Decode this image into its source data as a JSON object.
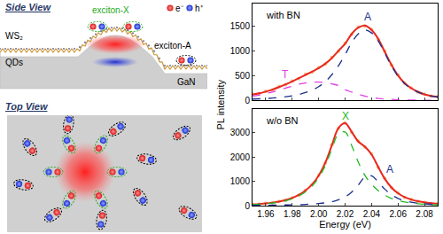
{
  "diagram": {
    "side_view": {
      "title": "Side View",
      "layer": "WS₂",
      "dots": "QDs",
      "substrate": "GaN",
      "exciton_x": "exciton-X",
      "exciton_a": "exciton-A",
      "electron": "e⁻",
      "hole": "h⁺"
    },
    "top_view": {
      "title": "Top View"
    }
  },
  "chart_data": {
    "type": "line",
    "xlabel": "Energy (eV)",
    "ylabel": "PL intensity",
    "xlim": [
      1.95,
      2.09
    ],
    "xticks": [
      1.96,
      1.98,
      {
        "value": 2.0,
        "label": "2.00"
      },
      2.02,
      2.04,
      2.06,
      2.08
    ],
    "x": [
      1.95,
      1.955,
      1.96,
      1.965,
      1.97,
      1.975,
      1.98,
      1.985,
      1.99,
      1.995,
      2.0,
      2.005,
      2.01,
      2.015,
      2.02,
      2.025,
      2.03,
      2.035,
      2.04,
      2.045,
      2.05,
      2.055,
      2.06,
      2.065,
      2.07,
      2.075,
      2.08,
      2.085,
      2.09
    ],
    "panels": [
      {
        "title": "with BN",
        "ylim": [
          0,
          1950
        ],
        "yticks": [
          0,
          500,
          1000,
          1500
        ],
        "series": [
          {
            "type": "scatter",
            "marker": "circle",
            "color": "#f0a860",
            "values": [
              132,
              140,
              186,
              212,
              281,
              318,
              392,
              441,
              528,
              571,
              662,
              733,
              868,
              992,
              1152,
              1331,
              1478,
              1496,
              1431,
              1230,
              992,
              715,
              515,
              345,
              255,
              170,
              130,
              90,
              78
            ]
          },
          {
            "type": "line",
            "line_style": "solid",
            "color": "#e8281e",
            "values": [
              120,
              145,
              180,
              220,
              270,
              325,
              385,
              450,
              515,
              580,
              650,
              740,
              855,
              1000,
              1140,
              1340,
              1465,
              1510,
              1420,
              1242,
              980,
              722,
              506,
              352,
              249,
              177,
              125,
              94,
              73
            ]
          },
          {
            "type": "line",
            "line_style": "dash",
            "color": "#1c2f8f",
            "values": [
              30,
              35,
              40,
              50,
              60,
              75,
              95,
              120,
              160,
              210,
              280,
              380,
              520,
              700,
              920,
              1170,
              1340,
              1420,
              1360,
              1200,
              950,
              700,
              490,
              340,
              240,
              170,
              120,
              90,
              70
            ]
          },
          {
            "type": "line",
            "line_style": "dash",
            "color": "#e040e0",
            "values": [
              90,
              110,
              140,
              170,
              210,
              250,
              290,
              330,
              355,
              370,
              370,
              360,
              335,
              300,
              220,
              170,
              125,
              90,
              60,
              42,
              30,
              22,
              16,
              12,
              9,
              7,
              5,
              4,
              3
            ]
          }
        ],
        "annotations": [
          {
            "text": "A",
            "x": 2.037,
            "y": 1680,
            "color": "#1c2f8f"
          },
          {
            "text": "T",
            "x": 1.975,
            "y": 520,
            "color": "#e040e0"
          }
        ]
      },
      {
        "title": "w/o BN",
        "ylim": [
          0,
          4000
        ],
        "yticks": [
          0,
          1000,
          2000,
          3000
        ],
        "series": [
          {
            "type": "scatter",
            "marker": "circle",
            "color": "#f0a860",
            "values": [
              58,
              62,
              96,
              118,
              175,
              220,
              320,
              430,
              635,
              860,
              1250,
              1750,
              2510,
              3180,
              3420,
              3020,
              2660,
              2410,
              2130,
              1580,
              1120,
              740,
              520,
              340,
              258,
              172,
              140,
              95,
              80
            ]
          },
          {
            "type": "line",
            "line_style": "solid",
            "color": "#e8281e",
            "values": [
              50,
              67,
              90,
              123,
              167,
              227,
              313,
              440,
              620,
              875,
              1235,
              1765,
              2490,
              3200,
              3400,
              3040,
              2640,
              2430,
              2110,
              1600,
              1110,
              750,
              510,
              350,
              250,
              180,
              135,
              100,
              75
            ]
          },
          {
            "type": "line",
            "line_style": "dash",
            "color": "#22b822",
            "values": [
              40,
              55,
              75,
              105,
              145,
              200,
              280,
              400,
              570,
              810,
              1150,
              1650,
              2330,
              2960,
              3040,
              2480,
              1790,
              1250,
              880,
              620,
              430,
              300,
              210,
              150,
              110,
              80,
              60,
              45,
              35
            ]
          },
          {
            "type": "line",
            "line_style": "dash",
            "color": "#1c2f8f",
            "values": [
              10,
              12,
              15,
              18,
              22,
              27,
              33,
              40,
              50,
              65,
              85,
              115,
              160,
              240,
              360,
              560,
              850,
              1180,
              1230,
              980,
              680,
              450,
              300,
              200,
              140,
              100,
              75,
              55,
              40
            ]
          }
        ],
        "annotations": [
          {
            "text": "X",
            "x": 2.02,
            "y": 3700,
            "color": "#22b822"
          },
          {
            "text": "A",
            "x": 2.054,
            "y": 1500,
            "color": "#1c2f8f"
          }
        ]
      }
    ]
  }
}
